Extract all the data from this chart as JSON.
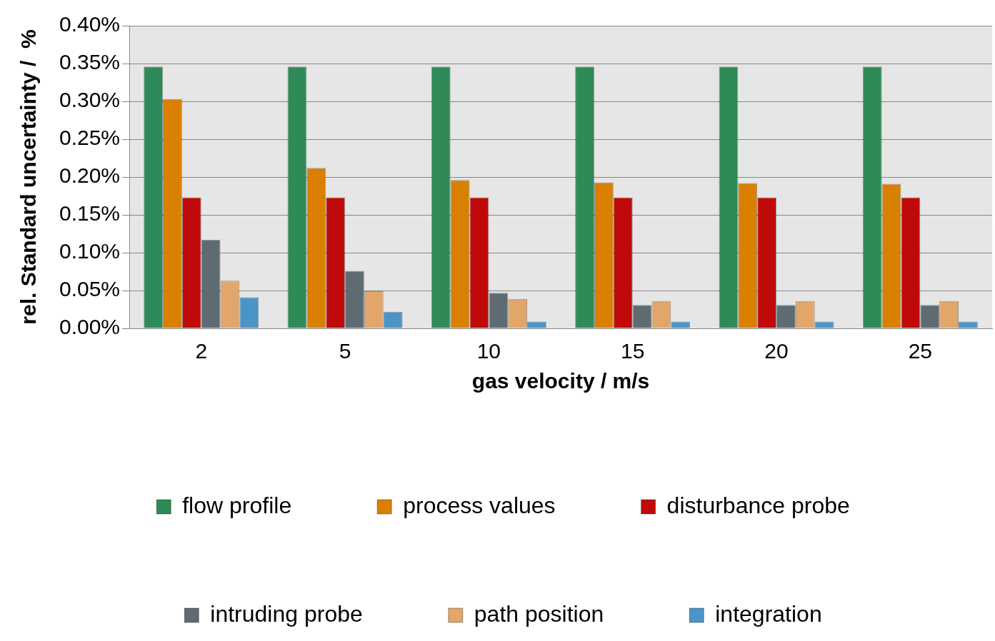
{
  "chart_data": {
    "type": "bar",
    "xlabel": "gas velocity / m/s",
    "ylabel": "rel. Standard uncertainty /  %",
    "categories": [
      "2",
      "5",
      "10",
      "15",
      "20",
      "25"
    ],
    "series": [
      {
        "name": "flow profile",
        "color": "#2e8b57",
        "values": [
          0.346,
          0.346,
          0.346,
          0.346,
          0.346,
          0.346
        ]
      },
      {
        "name": "process values",
        "color": "#d98000",
        "values": [
          0.303,
          0.212,
          0.196,
          0.193,
          0.192,
          0.191
        ]
      },
      {
        "name": "disturbance probe",
        "color": "#c00a0a",
        "values": [
          0.173,
          0.173,
          0.173,
          0.173,
          0.173,
          0.173
        ]
      },
      {
        "name": "intruding probe",
        "color": "#5f6b73",
        "values": [
          0.117,
          0.076,
          0.047,
          0.031,
          0.031,
          0.031
        ]
      },
      {
        "name": "path position",
        "color": "#e3a66a",
        "values": [
          0.063,
          0.049,
          0.039,
          0.036,
          0.036,
          0.036
        ]
      },
      {
        "name": "integration",
        "color": "#4b94c8",
        "values": [
          0.041,
          0.022,
          0.009,
          0.009,
          0.009,
          0.009
        ]
      }
    ],
    "ylim": [
      0,
      0.4
    ],
    "yticks": [
      {
        "value": 0,
        "label": "0.00%"
      },
      {
        "value": 0.05,
        "label": "0.05%"
      },
      {
        "value": 0.1,
        "label": "0.10%"
      },
      {
        "value": 0.15,
        "label": "0.15%"
      },
      {
        "value": 0.2,
        "label": "0.20%"
      },
      {
        "value": 0.25,
        "label": "0.25%"
      },
      {
        "value": 0.3,
        "label": "0.30%"
      },
      {
        "value": 0.35,
        "label": "0.35%"
      },
      {
        "value": 0.4,
        "label": "0.40%"
      }
    ],
    "grid": "y",
    "legend": "bottom"
  }
}
